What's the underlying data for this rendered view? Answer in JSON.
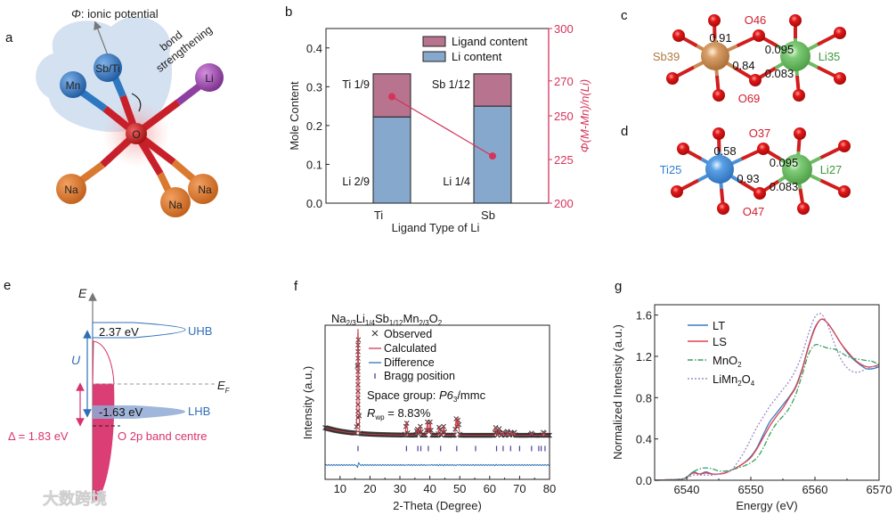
{
  "panel_labels": {
    "a": "a",
    "b": "b",
    "c": "c",
    "d": "d",
    "e": "e",
    "f": "f",
    "g": "g"
  },
  "panel_a": {
    "phi_symbol": "Φ",
    "phi_label": ": ionic potential",
    "bond_label_1": "bond",
    "bond_label_2": "strengthening",
    "atoms": {
      "mn": "Mn",
      "sbti": "Sb/Ti",
      "li": "Li",
      "o": "O",
      "na1": "Na",
      "na2": "Na",
      "na3": "Na"
    },
    "colors": {
      "mn": "#2f6fb8",
      "li": "#8e3fa0",
      "o": "#c8202a",
      "na": "#d97a30"
    }
  },
  "panel_c": {
    "center": "Sb39",
    "neighbor": "Li35",
    "o_top": "O46",
    "o_bottom": "O69",
    "values": {
      "m_top": "0.91",
      "m_bottom": "0.84",
      "li_top": "0.095",
      "li_bottom": "0.083"
    },
    "colors": {
      "center": "#c98850",
      "neighbor": "#6dbb63",
      "o": "#d01d1d"
    }
  },
  "panel_d": {
    "center": "Ti25",
    "neighbor": "Li27",
    "o_top": "O37",
    "o_bottom": "O47",
    "values": {
      "m_top": "0.58",
      "m_bottom": "0.93",
      "li_top": "0.095",
      "li_bottom": "0.083"
    },
    "colors": {
      "center": "#4a90d6",
      "neighbor": "#6dbb63",
      "o": "#d01d1d"
    }
  },
  "panel_e": {
    "axis_label": "E",
    "uhb_value": "2.37 eV",
    "uhb_label": "UHB",
    "lhb_value": "-1.63 eV",
    "lhb_label": "LHB",
    "u_label": "U",
    "ef_label": "E",
    "ef_sub": "F",
    "delta_label": "Δ = 1.83 eV",
    "o2p_label": "O 2p band centre",
    "colors": {
      "hubbard": "#2f6fb8",
      "o2p": "#d9336e"
    }
  },
  "watermark": "大数跨境",
  "chart_data": [
    {
      "panel": "b",
      "type": "bar",
      "stacked": true,
      "categories": [
        "Ti",
        "Sb"
      ],
      "series": [
        {
          "name": "Li content",
          "values": [
            0.2222,
            0.25
          ],
          "color": "#86a8cc",
          "labels": [
            "Li 2/9",
            "Li 1/4"
          ]
        },
        {
          "name": "Ligand content",
          "values": [
            0.1111,
            0.0833
          ],
          "color": "#b8738e",
          "labels": [
            "Ti 1/9",
            "Sb 1/12"
          ]
        }
      ],
      "secondary_series": {
        "name": "Φ(M-Mn)/n(Li)",
        "values": [
          261,
          227
        ],
        "color": "#d6335a"
      },
      "xlabel": "Ligand Type of Li",
      "ylabel": "Mole Content",
      "y2label": "Φ(M-Mn)/n(Li)",
      "ylim": [
        0,
        0.45
      ],
      "yticks": [
        "0.0",
        "0.1",
        "0.2",
        "0.3",
        "0.4"
      ],
      "y2lim": [
        200,
        300
      ],
      "y2ticks": [
        "200",
        "225",
        "250",
        "270",
        "300"
      ],
      "legend": "top-right"
    },
    {
      "panel": "f",
      "type": "scatter",
      "title_parts": [
        "Na",
        "2/3",
        "Li",
        "1/4",
        "Sb",
        "1/12",
        "Mn",
        "2/3",
        "O",
        "2"
      ],
      "xlabel": "2-Theta (Degree)",
      "ylabel": "Intensity (a.u.)",
      "xlim": [
        5,
        80
      ],
      "ylim": [
        -30,
        110
      ],
      "xticks": [
        "10",
        "20",
        "30",
        "40",
        "50",
        "60",
        "70",
        "80"
      ],
      "legend": [
        "Observed",
        "Calculated",
        "Difference",
        "Bragg position"
      ],
      "space_group_label": "Space group: ",
      "space_group_italic": "P6",
      "space_group_sub": "3",
      "space_group_rest": "/mmc",
      "rwp_label": "R",
      "rwp_sub": "wp",
      "rwp_value": " = 8.83%",
      "background": {
        "level": 10,
        "amplitude": 7,
        "decay": 8
      },
      "model_peaks": [
        [
          16,
          95
        ],
        [
          32.2,
          12
        ],
        [
          35.8,
          6
        ],
        [
          36.8,
          8
        ],
        [
          39.2,
          12
        ],
        [
          40.1,
          12
        ],
        [
          43.2,
          8
        ],
        [
          44.6,
          8
        ],
        [
          48.8,
          15
        ],
        [
          49.5,
          15
        ],
        [
          62.0,
          7
        ],
        [
          63.2,
          6
        ],
        [
          64.5,
          3
        ],
        [
          66.0,
          4
        ],
        [
          67.2,
          3
        ],
        [
          68.2,
          3
        ],
        [
          74.0,
          2
        ],
        [
          78.0,
          3
        ]
      ],
      "bragg_positions": [
        16,
        32.2,
        36,
        37,
        39.5,
        43.6,
        49,
        55.3,
        62.3,
        64.5,
        67,
        70,
        74,
        76.4,
        77.2,
        78.5
      ],
      "colors": {
        "observed": "#333333",
        "calculated": "#d23a4a",
        "difference": "#2f73b5",
        "bragg": "#4b3f9a"
      }
    },
    {
      "panel": "g",
      "type": "line",
      "xlabel": "Energy (eV)",
      "ylabel": "Normalized Intensity (a.u.)",
      "xlim": [
        6535,
        6570
      ],
      "ylim": [
        0,
        1.7
      ],
      "xticks": [
        "6540",
        "6550",
        "6560",
        "6570"
      ],
      "yticks": [
        "0.0",
        "0.4",
        "0.8",
        "1.2",
        "1.6"
      ],
      "legend_position": "top-left",
      "x": [
        6535,
        6539,
        6540,
        6541,
        6542,
        6543,
        6544,
        6545,
        6546,
        6547,
        6548,
        6549,
        6550,
        6551,
        6552,
        6553,
        6554,
        6555,
        6556,
        6557,
        6558,
        6559,
        6560,
        6561,
        6562,
        6563,
        6564,
        6565,
        6566,
        6567,
        6568,
        6569,
        6570
      ],
      "series": [
        {
          "name": "LT",
          "name_sub": "",
          "color": "#3a7cc4",
          "dash": "",
          "values": [
            0,
            0.01,
            0.03,
            0.08,
            0.06,
            0.08,
            0.06,
            0.06,
            0.07,
            0.1,
            0.13,
            0.17,
            0.23,
            0.32,
            0.45,
            0.57,
            0.65,
            0.73,
            0.81,
            0.91,
            1.08,
            1.3,
            1.48,
            1.56,
            1.52,
            1.43,
            1.33,
            1.24,
            1.17,
            1.12,
            1.08,
            1.08,
            1.1
          ]
        },
        {
          "name": "LS",
          "name_sub": "",
          "color": "#e0404a",
          "dash": "",
          "values": [
            0,
            0.01,
            0.03,
            0.07,
            0.06,
            0.07,
            0.06,
            0.06,
            0.07,
            0.1,
            0.13,
            0.17,
            0.22,
            0.31,
            0.42,
            0.53,
            0.62,
            0.7,
            0.8,
            0.9,
            1.07,
            1.29,
            1.47,
            1.56,
            1.52,
            1.43,
            1.33,
            1.25,
            1.18,
            1.13,
            1.1,
            1.1,
            1.12
          ]
        },
        {
          "name": "MnO",
          "name_sub": "2",
          "color": "#3aa060",
          "dash": "6 2 1.5 2",
          "values": [
            0,
            0.01,
            0.03,
            0.08,
            0.11,
            0.12,
            0.11,
            0.09,
            0.09,
            0.1,
            0.12,
            0.14,
            0.17,
            0.22,
            0.32,
            0.45,
            0.55,
            0.62,
            0.7,
            0.83,
            1.02,
            1.22,
            1.31,
            1.3,
            1.28,
            1.27,
            1.24,
            1.2,
            1.18,
            1.17,
            1.16,
            1.15,
            1.12
          ]
        },
        {
          "name": "LiMn",
          "name_sub": "2",
          "name_tail": "O",
          "name_tail_sub": "4",
          "color": "#a08ac8",
          "dash": "2 2",
          "values": [
            0,
            0.01,
            0.02,
            0.05,
            0.05,
            0.05,
            0.05,
            0.06,
            0.08,
            0.1,
            0.18,
            0.28,
            0.4,
            0.52,
            0.62,
            0.72,
            0.8,
            0.88,
            0.96,
            1.07,
            1.22,
            1.42,
            1.58,
            1.61,
            1.5,
            1.33,
            1.18,
            1.09,
            1.05,
            1.05,
            1.08,
            1.1,
            1.1
          ]
        }
      ]
    }
  ]
}
